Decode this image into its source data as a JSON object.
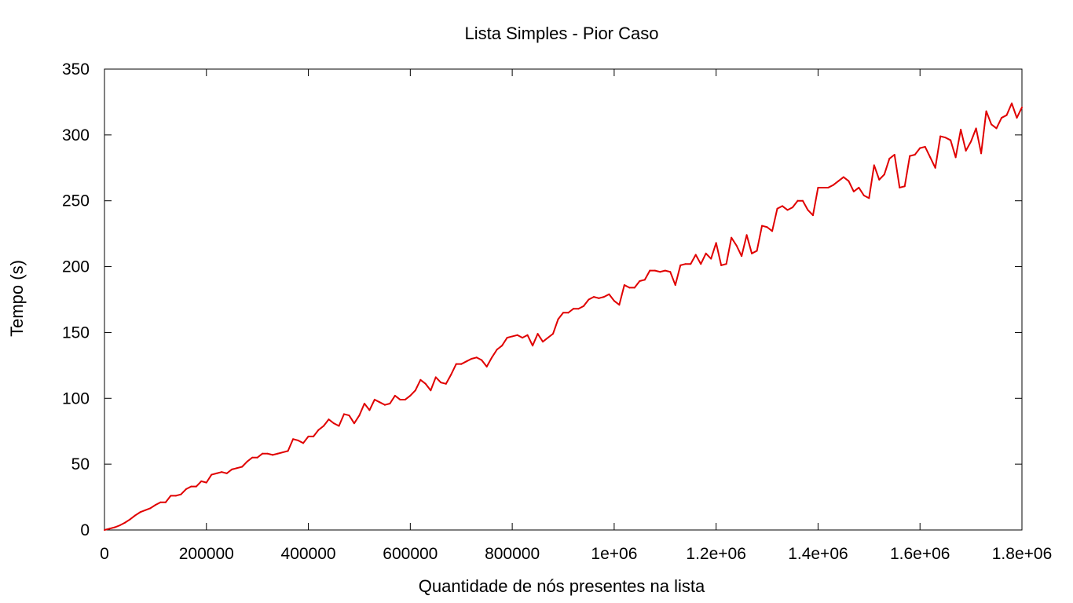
{
  "chart_data": {
    "type": "line",
    "title": "Lista Simples - Pior Caso",
    "xlabel": "Quantidade de nós presentes na lista",
    "ylabel": "Tempo (s)",
    "xlim": [
      0,
      1800000
    ],
    "ylim": [
      0,
      350
    ],
    "x_ticks": [
      {
        "value": 0,
        "label": "0"
      },
      {
        "value": 200000,
        "label": "200000"
      },
      {
        "value": 400000,
        "label": "400000"
      },
      {
        "value": 600000,
        "label": "600000"
      },
      {
        "value": 800000,
        "label": "800000"
      },
      {
        "value": 1000000,
        "label": "1e+06"
      },
      {
        "value": 1200000,
        "label": "1.2e+06"
      },
      {
        "value": 1400000,
        "label": "1.4e+06"
      },
      {
        "value": 1600000,
        "label": "1.6e+06"
      },
      {
        "value": 1800000,
        "label": "1.8e+06"
      }
    ],
    "y_ticks": [
      {
        "value": 0,
        "label": "0"
      },
      {
        "value": 50,
        "label": "50"
      },
      {
        "value": 100,
        "label": "100"
      },
      {
        "value": 150,
        "label": "150"
      },
      {
        "value": 200,
        "label": "200"
      },
      {
        "value": 250,
        "label": "250"
      },
      {
        "value": 300,
        "label": "300"
      },
      {
        "value": 350,
        "label": "350"
      }
    ],
    "grid": false,
    "legend": "none",
    "series": [
      {
        "color": "#e00000",
        "x": [
          0,
          10000,
          20000,
          30000,
          40000,
          50000,
          60000,
          70000,
          80000,
          90000,
          100000,
          110000,
          120000,
          130000,
          140000,
          150000,
          160000,
          170000,
          180000,
          190000,
          200000,
          210000,
          220000,
          230000,
          240000,
          250000,
          260000,
          270000,
          280000,
          290000,
          300000,
          310000,
          320000,
          330000,
          340000,
          350000,
          360000,
          370000,
          380000,
          390000,
          400000,
          410000,
          420000,
          430000,
          440000,
          450000,
          460000,
          470000,
          480000,
          490000,
          500000,
          510000,
          520000,
          530000,
          540000,
          550000,
          560000,
          570000,
          580000,
          590000,
          600000,
          610000,
          620000,
          630000,
          640000,
          650000,
          660000,
          670000,
          680000,
          690000,
          700000,
          710000,
          720000,
          730000,
          740000,
          750000,
          760000,
          770000,
          780000,
          790000,
          800000,
          810000,
          820000,
          830000,
          840000,
          850000,
          860000,
          870000,
          880000,
          890000,
          900000,
          910000,
          920000,
          930000,
          940000,
          950000,
          960000,
          970000,
          980000,
          990000,
          1000000,
          1010000,
          1020000,
          1030000,
          1040000,
          1050000,
          1060000,
          1070000,
          1080000,
          1090000,
          1100000,
          1110000,
          1120000,
          1130000,
          1140000,
          1150000,
          1160000,
          1170000,
          1180000,
          1190000,
          1200000,
          1210000,
          1220000,
          1230000,
          1240000,
          1250000,
          1260000,
          1270000,
          1280000,
          1290000,
          1300000,
          1310000,
          1320000,
          1330000,
          1340000,
          1350000,
          1360000,
          1370000,
          1380000,
          1390000,
          1400000,
          1410000,
          1420000,
          1430000,
          1440000,
          1450000,
          1460000,
          1470000,
          1480000,
          1490000,
          1500000,
          1510000,
          1520000,
          1530000,
          1540000,
          1550000,
          1560000,
          1570000,
          1580000,
          1590000,
          1600000,
          1610000,
          1620000,
          1630000,
          1640000,
          1650000,
          1660000,
          1670000,
          1680000,
          1690000,
          1700000,
          1710000,
          1720000,
          1730000,
          1740000,
          1750000,
          1760000,
          1770000,
          1780000,
          1790000,
          1800000
        ],
        "y": [
          0,
          1,
          2,
          3.5,
          5.5,
          8,
          11,
          13.5,
          15,
          16.5,
          19,
          21,
          21,
          26,
          26,
          27,
          31,
          33,
          33,
          37,
          36,
          42,
          43,
          44,
          43,
          46,
          47,
          48,
          52,
          55,
          55,
          58,
          58,
          57,
          58,
          59,
          60,
          69,
          68,
          66,
          71,
          71,
          76,
          79,
          84,
          81,
          79,
          88,
          87,
          81,
          87,
          96,
          91,
          99,
          97,
          95,
          96,
          102,
          99,
          99,
          102,
          106,
          114,
          111,
          106,
          116,
          112,
          111,
          118,
          126,
          126,
          128,
          130,
          131,
          129,
          124,
          131,
          137,
          140,
          146,
          147,
          148,
          146,
          148,
          140,
          149,
          143,
          146,
          149,
          160,
          165,
          165,
          168,
          168,
          170,
          175,
          177,
          176,
          177,
          179,
          174,
          171,
          186,
          184,
          184,
          189,
          190,
          197,
          197,
          196,
          197,
          196,
          186,
          201,
          202,
          202,
          209,
          202,
          210,
          206,
          218,
          201,
          202,
          222,
          216,
          208,
          224,
          210,
          212,
          231,
          230,
          227,
          244,
          246,
          243,
          245,
          250,
          250,
          243,
          239,
          260,
          260,
          260,
          262,
          265,
          268,
          265,
          257,
          260,
          254,
          252,
          277,
          266,
          270,
          282,
          285,
          260,
          261,
          284,
          285,
          290,
          291,
          283,
          275,
          299,
          298,
          296,
          283,
          304,
          288,
          295,
          305,
          286,
          318,
          308,
          305,
          313,
          315,
          324,
          313,
          321
        ]
      }
    ]
  }
}
